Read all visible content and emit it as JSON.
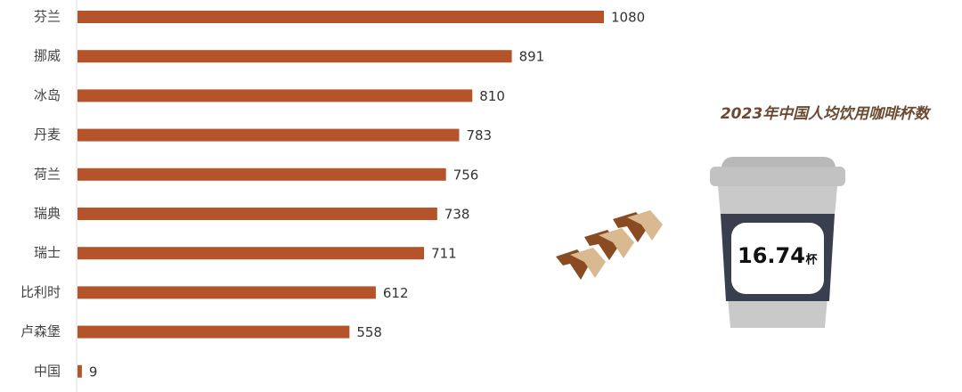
{
  "chart_data": {
    "type": "bar",
    "orientation": "horizontal",
    "categories": [
      "芬兰",
      "挪威",
      "冰岛",
      "丹麦",
      "荷兰",
      "瑞典",
      "瑞士",
      "比利时",
      "卢森堡",
      "中国"
    ],
    "values": [
      1080,
      891,
      810,
      783,
      756,
      738,
      711,
      612,
      558,
      9
    ],
    "color": "#b5542a"
  },
  "callout": {
    "title": "2023年中国人均饮用咖啡杯数",
    "value": "16.74",
    "unit": "杯"
  }
}
